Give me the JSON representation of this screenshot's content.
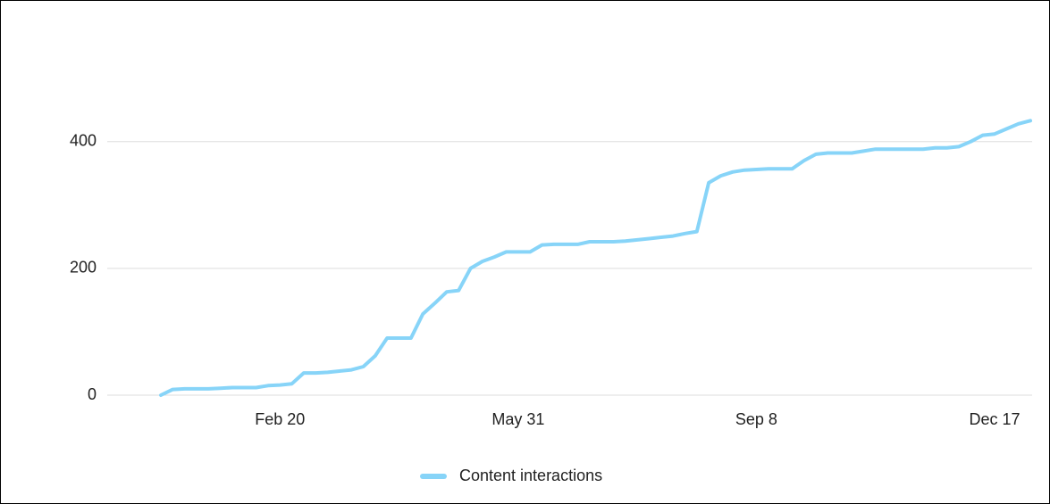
{
  "chart_data": {
    "type": "line",
    "categories": [
      null,
      null,
      null,
      null,
      null,
      null,
      null,
      null,
      null,
      null,
      "Feb 20",
      null,
      null,
      null,
      null,
      null,
      null,
      null,
      null,
      null,
      null,
      null,
      null,
      null,
      null,
      null,
      null,
      null,
      null,
      null,
      "May 31",
      null,
      null,
      null,
      null,
      null,
      null,
      null,
      null,
      null,
      null,
      null,
      null,
      null,
      null,
      null,
      null,
      null,
      null,
      null,
      "Sep 8",
      null,
      null,
      null,
      null,
      null,
      null,
      null,
      null,
      null,
      null,
      null,
      null,
      null,
      null,
      null,
      null,
      null,
      null,
      null,
      "Dec 17",
      null,
      null,
      null
    ],
    "series": [
      {
        "name": "Content interactions",
        "color": "#87d4f8",
        "values": [
          0,
          9,
          10,
          10,
          10,
          11,
          12,
          12,
          12,
          15,
          16,
          18,
          35,
          35,
          36,
          38,
          40,
          45,
          62,
          90,
          90,
          90,
          128,
          145,
          163,
          165,
          200,
          211,
          218,
          226,
          226,
          226,
          237,
          238,
          238,
          238,
          242,
          242,
          242,
          243,
          245,
          247,
          249,
          251,
          255,
          258,
          335,
          346,
          352,
          355,
          356,
          357,
          357,
          357,
          370,
          380,
          382,
          382,
          382,
          385,
          388,
          388,
          388,
          388,
          388,
          390,
          390,
          392,
          400,
          410,
          412,
          420,
          428,
          433
        ]
      }
    ],
    "ylim": [
      0,
      560
    ],
    "yticks": [
      0,
      200,
      400
    ],
    "grid": true,
    "legend": "bottom"
  }
}
